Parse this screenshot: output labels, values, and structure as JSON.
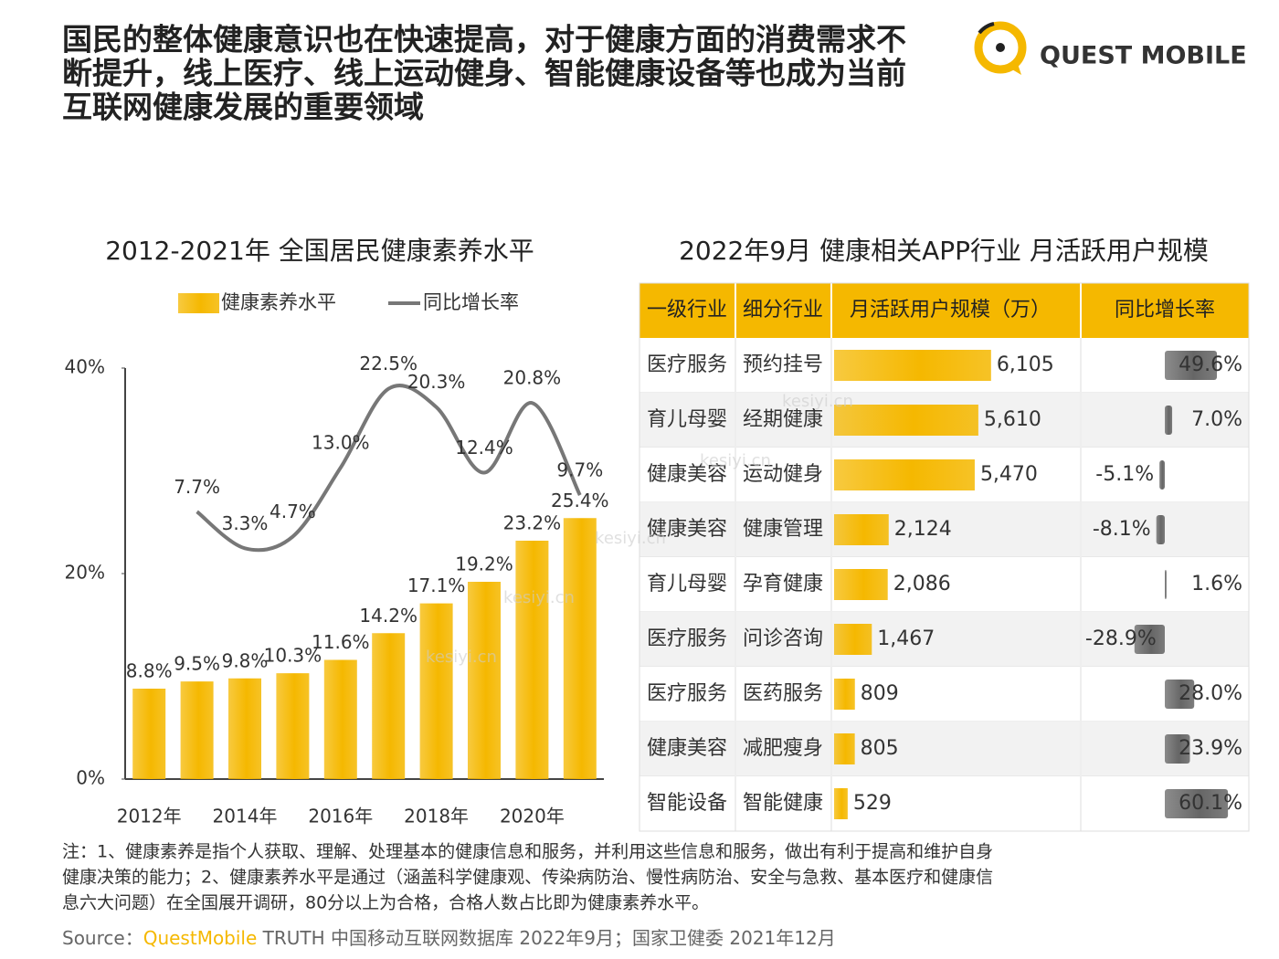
{
  "header": {
    "title_lines": [
      "国民的整体健康意识也在快速提高，对于健康方面的消费需求不",
      "断提升，线上医疗、线上运动健身、智能健康设备等也成为当前",
      "互联网健康发展的重要领域"
    ],
    "logo": "QUEST MOBILE"
  },
  "chart_data": [
    {
      "type": "bar_line",
      "title": "2012-2021年 全国居民健康素养水平",
      "categories": [
        "2012年",
        null,
        "2014年",
        null,
        "2016年",
        null,
        "2018年",
        null,
        "2020年",
        null
      ],
      "series": [
        {
          "name": "健康素养水平",
          "type": "bar",
          "color": "#f5b800",
          "values": [
            8.8,
            9.5,
            9.8,
            10.3,
            11.6,
            14.2,
            17.1,
            19.2,
            23.2,
            25.4
          ],
          "value_labels": [
            "8.8%",
            "9.5%",
            "9.8%",
            "10.3%",
            "11.6%",
            "14.2%",
            "17.1%",
            "19.2%",
            "23.2%",
            "25.4%"
          ]
        },
        {
          "name": "同比增长率",
          "type": "line",
          "color": "#777777",
          "axis": "y2",
          "values": [
            null,
            7.7,
            3.3,
            4.7,
            13.0,
            22.5,
            20.3,
            12.4,
            20.8,
            9.7
          ],
          "value_labels": [
            null,
            "7.7%",
            "3.3%",
            "4.7%",
            "13.0%",
            "22.5%",
            "20.3%",
            "12.4%",
            "20.8%",
            "9.7%"
          ]
        }
      ],
      "ylim": [
        0,
        40
      ],
      "yticks": [
        {
          "value": 0,
          "label": "0%"
        },
        {
          "value": 20,
          "label": "20%"
        },
        {
          "value": 40,
          "label": "40%"
        }
      ],
      "y2lim": [
        -24.5,
        25
      ],
      "legend": "top"
    },
    {
      "type": "table",
      "title": "2022年9月 健康相关APP行业 月活跃用户规模",
      "columns": [
        "一级行业",
        "细分行业",
        "月活跃用户规模（万）",
        "同比增长率"
      ],
      "industries": [
        "医疗服务",
        "育儿母婴",
        "健康美容",
        "健康美容",
        "育儿母婴",
        "医疗服务",
        "医疗服务",
        "健康美容",
        "智能设备"
      ],
      "subcategories": [
        "预约挂号",
        "经期健康",
        "运动健身",
        "健康管理",
        "孕育健康",
        "问诊咨询",
        "医药服务",
        "减肥瘦身",
        "智能健康"
      ],
      "mau": {
        "color": "#f5b800",
        "xlim": [
          0,
          9700
        ],
        "values": [
          6105,
          5610,
          5470,
          2124,
          2086,
          1467,
          809,
          805,
          529
        ],
        "value_labels": [
          "6,105",
          "5,610",
          "5,470",
          "2,124",
          "2,086",
          "1,467",
          "809",
          "805",
          "529"
        ]
      },
      "growth": {
        "color": "#666666",
        "xlim": [
          -80,
          80
        ],
        "values": [
          49.6,
          7.0,
          -5.1,
          -8.1,
          1.6,
          -28.9,
          28.0,
          23.9,
          60.1
        ],
        "value_labels": [
          "49.6%",
          "7.0%",
          "-5.1%",
          "-8.1%",
          "1.6%",
          "-28.9%",
          "28.0%",
          "23.9%",
          "60.1%"
        ]
      }
    }
  ],
  "notes": [
    "注：1、健康素养是指个人获取、理解、处理基本的健康信息和服务，并利用这些信息和服务，做出有利于提高和维护自身",
    "健康决策的能力；2、健康素养水平是通过（涵盖科学健康观、传染病防治、慢性病防治、安全与急救、基本医疗和健康信",
    "息六大问题）在全国展开调研，80分以上为合格，合格人数占比即为健康素养水平。"
  ],
  "source": {
    "prefix": "Source：",
    "brand": "QuestMobile",
    "rest": " TRUTH 中国移动互联网数据库 2022年9月；国家卫健委 2021年12月"
  },
  "watermark": "kesiyi.cn"
}
